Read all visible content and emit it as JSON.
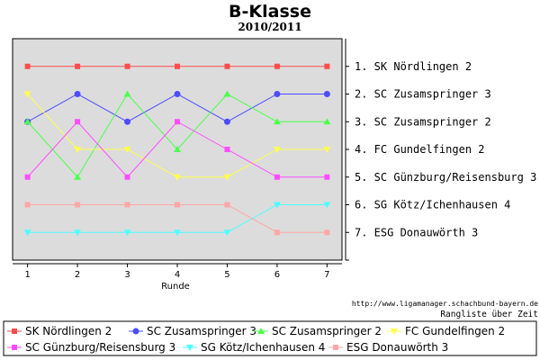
{
  "chart_data": {
    "type": "line",
    "title": "B-Klasse",
    "subtitle": "2010/2011",
    "xlabel": "Runde",
    "ylabel": "",
    "x": [
      1,
      2,
      3,
      4,
      5,
      6,
      7
    ],
    "ylim": [
      0,
      8
    ],
    "y_inverted": true,
    "grid": false,
    "legend_position": "bottom",
    "rank_labels": [
      "1. SK Nördlingen 2",
      "2. SC Zusamspringer 3",
      "3. SC Zusamspringer 2",
      "4. FC Gundelfingen 2",
      "5. SC Günzburg/Reisensburg 3",
      "6. SG Kötz/Ichenhausen 4",
      "7. ESG Donauwörth 3"
    ],
    "series": [
      {
        "name": "SK Nördlingen 2",
        "color": "#ff4c4c",
        "marker": "square",
        "values": [
          1,
          1,
          1,
          1,
          1,
          1,
          1
        ]
      },
      {
        "name": "SC Zusamspringer 3",
        "color": "#4c4cff",
        "marker": "circle",
        "values": [
          3,
          2,
          3,
          2,
          3,
          2,
          2
        ]
      },
      {
        "name": "SC Zusamspringer 2",
        "color": "#4cff4c",
        "marker": "triangle-up",
        "values": [
          3,
          5,
          2,
          4,
          2,
          3,
          3
        ]
      },
      {
        "name": "FC Gundelfingen 2",
        "color": "#ffff4c",
        "marker": "triangle-down",
        "values": [
          2,
          4,
          4,
          5,
          5,
          4,
          4
        ]
      },
      {
        "name": "SC Günzburg/Reisensburg 3",
        "color": "#ff4cff",
        "marker": "square",
        "values": [
          5,
          3,
          5,
          3,
          4,
          5,
          5
        ]
      },
      {
        "name": "SG Kötz/Ichenhausen 4",
        "color": "#4cffff",
        "marker": "triangle-down",
        "values": [
          7,
          7,
          7,
          7,
          7,
          6,
          6
        ]
      },
      {
        "name": "ESG Donauwörth 3",
        "color": "#ffa6a6",
        "marker": "square",
        "values": [
          6,
          6,
          6,
          6,
          6,
          7,
          7
        ]
      }
    ],
    "footer_url": "http://www.ligamanager.schachbund-bayern.de",
    "footer_note": "Rangliste über Zeit"
  }
}
